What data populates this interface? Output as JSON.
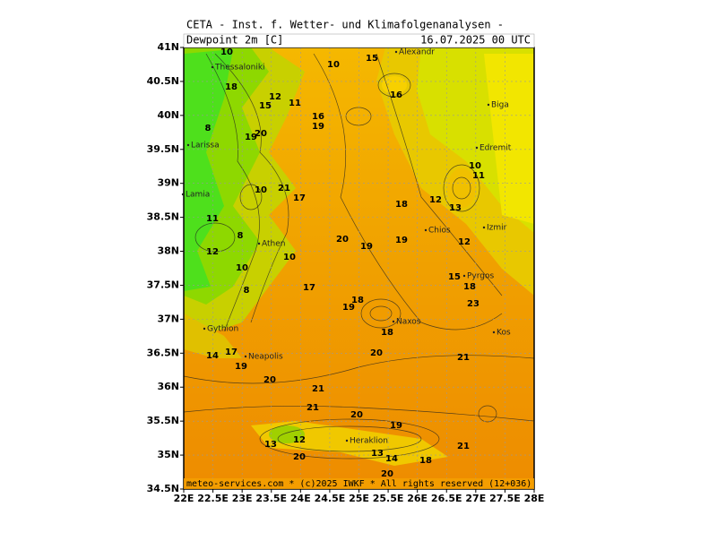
{
  "header": {
    "title": "CETA - Inst. f. Wetter- und Klimafolgenanalysen -",
    "variable": "Dewpoint 2m [C]",
    "valid_time": "16.07.2025 00 UTC",
    "footer": "meteo-services.com * (c)2025 IWKF * All rights reserved (12+036)"
  },
  "axes": {
    "lat_ticks": [
      {
        "value": 41,
        "label": "41N"
      },
      {
        "value": 40.5,
        "label": "40.5N"
      },
      {
        "value": 40,
        "label": "40N"
      },
      {
        "value": 39.5,
        "label": "39.5N"
      },
      {
        "value": 39,
        "label": "39N"
      },
      {
        "value": 38.5,
        "label": "38.5N"
      },
      {
        "value": 38,
        "label": "38N"
      },
      {
        "value": 37.5,
        "label": "37.5N"
      },
      {
        "value": 37,
        "label": "37N"
      },
      {
        "value": 36.5,
        "label": "36.5N"
      },
      {
        "value": 36,
        "label": "36N"
      },
      {
        "value": 35.5,
        "label": "35.5N"
      },
      {
        "value": 35,
        "label": "35N"
      },
      {
        "value": 34.5,
        "label": "34.5N"
      }
    ],
    "lon_ticks": [
      {
        "value": 22,
        "label": "22E"
      },
      {
        "value": 22.5,
        "label": "22.5E"
      },
      {
        "value": 23,
        "label": "23E"
      },
      {
        "value": 23.5,
        "label": "23.5E"
      },
      {
        "value": 24,
        "label": "24E"
      },
      {
        "value": 24.5,
        "label": "24.5E"
      },
      {
        "value": 25,
        "label": "25E"
      },
      {
        "value": 25.5,
        "label": "25.5E"
      },
      {
        "value": 26,
        "label": "26E"
      },
      {
        "value": 26.5,
        "label": "26.5E"
      },
      {
        "value": 27,
        "label": "27E"
      },
      {
        "value": 27.5,
        "label": "27.5E"
      },
      {
        "value": 28,
        "label": "28E"
      }
    ]
  },
  "places": [
    "Thessaloniki",
    "Alexandr",
    "Biga",
    "Edremit",
    "Larissa",
    "Lamia",
    "Athen",
    "Chios",
    "Izmir",
    "Pyrgos",
    "Naxos",
    "Kos",
    "Gythion",
    "Neapolis",
    "Heraklion"
  ],
  "contour_labels": [
    10,
    18,
    15,
    12,
    11,
    10,
    16,
    19,
    16,
    8,
    19,
    20,
    10,
    21,
    17,
    11,
    8,
    12,
    10,
    10,
    8,
    17,
    20,
    19,
    18,
    19,
    12,
    13,
    10,
    11,
    12,
    15,
    18,
    23,
    18,
    19,
    18,
    20,
    21,
    17,
    19,
    14,
    20,
    21,
    21,
    20,
    19,
    12,
    13,
    20,
    13,
    14,
    18,
    21,
    20,
    15
  ]
}
